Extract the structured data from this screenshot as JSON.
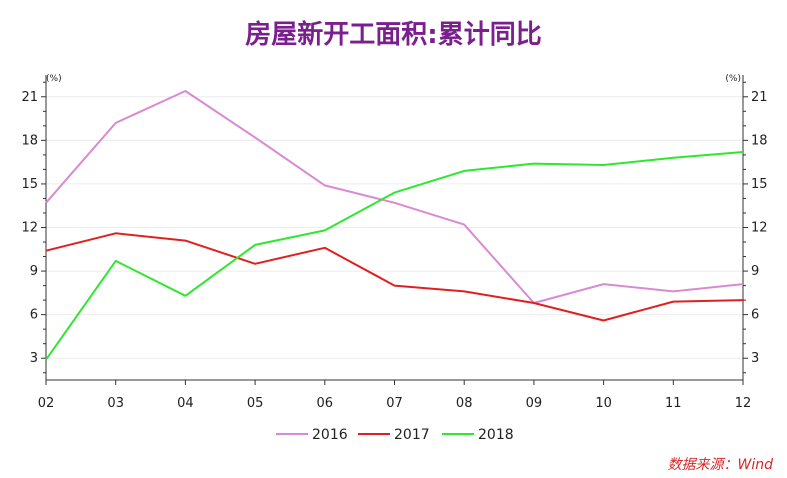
{
  "chart_data": {
    "type": "line",
    "title": "房屋新开工面积:累计同比",
    "x": [
      "02",
      "03",
      "04",
      "05",
      "06",
      "07",
      "08",
      "09",
      "10",
      "11",
      "12"
    ],
    "y_unit_left": "(%)",
    "y_unit_right": "(%)",
    "ylim": [
      1.5,
      22.5
    ],
    "yticks": [
      3,
      6,
      9,
      12,
      15,
      18,
      21
    ],
    "grid": true,
    "legend_position": "bottom",
    "series": [
      {
        "name": "2016",
        "color": "#d98ad2",
        "values": [
          13.7,
          19.2,
          21.4,
          18.2,
          14.9,
          13.7,
          12.2,
          6.8,
          8.1,
          7.6,
          8.1
        ]
      },
      {
        "name": "2017",
        "color": "#e02020",
        "values": [
          10.4,
          11.6,
          11.1,
          9.5,
          10.6,
          8.0,
          7.6,
          6.8,
          5.6,
          6.9,
          7.0
        ]
      },
      {
        "name": "2018",
        "color": "#2ee82e",
        "values": [
          2.9,
          9.7,
          7.3,
          10.8,
          11.8,
          14.4,
          15.9,
          16.4,
          16.3,
          16.8,
          17.2
        ]
      }
    ]
  },
  "source": "数据来源：Wind"
}
